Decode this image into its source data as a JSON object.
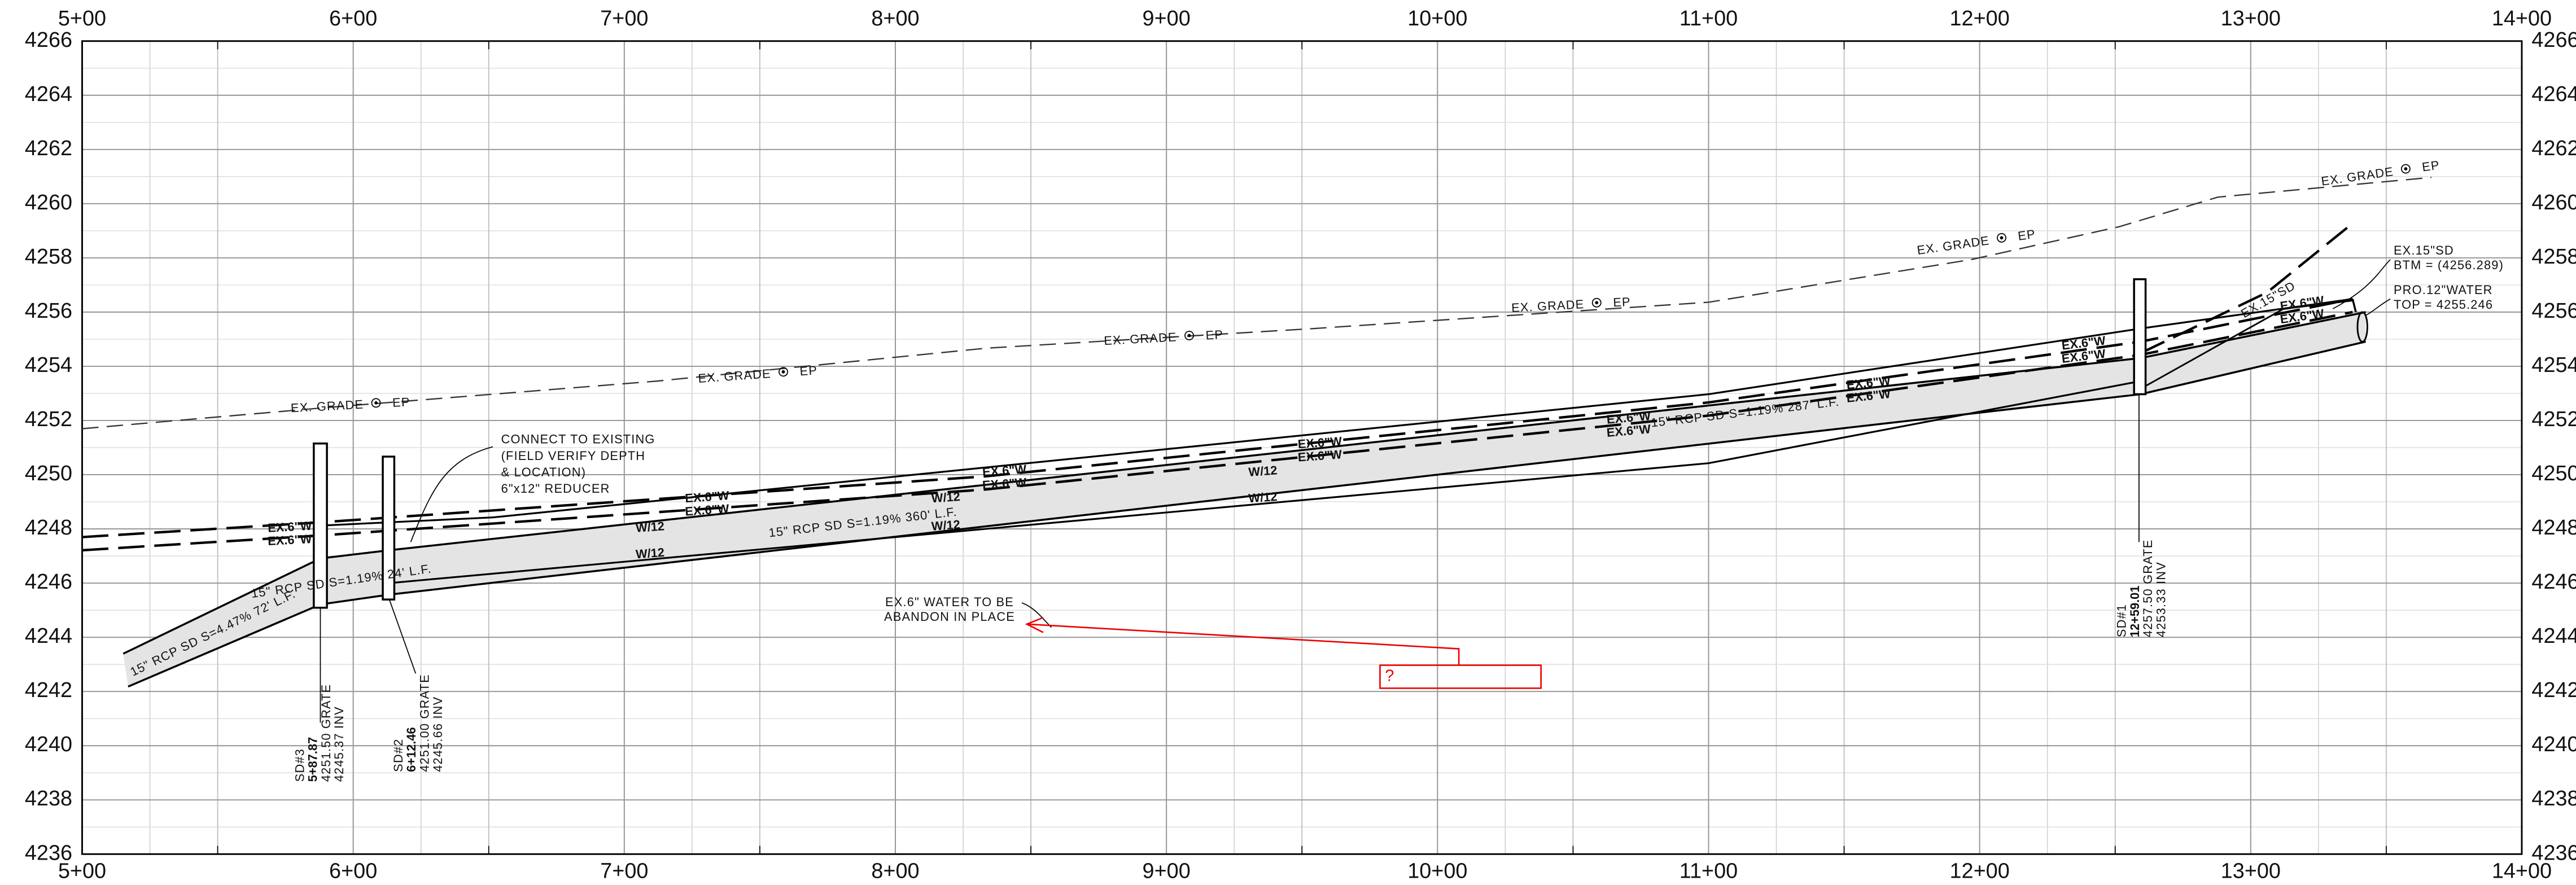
{
  "stations": [
    "5+00",
    "6+00",
    "7+00",
    "8+00",
    "9+00",
    "10+00",
    "11+00",
    "12+00",
    "13+00",
    "14+00"
  ],
  "elevations": [
    "4266",
    "4264",
    "4262",
    "4260",
    "4258",
    "4256",
    "4254",
    "4252",
    "4250",
    "4248",
    "4246",
    "4244",
    "4242",
    "4240",
    "4238",
    "4236"
  ],
  "grade_label": "EX. GRADE",
  "grade_ep": "EP",
  "water_label": "EX.6\"W",
  "w12": "W/12",
  "pipes": [
    "15\" RCP SD S=4.47% 72' L.F.",
    "15\" RCP SD S=1.19% 24' L.F.",
    "15\" RCP SD S=1.19% 360' L.F.",
    "15\" RCP SD S=1.19% 287' L.F."
  ],
  "callouts": {
    "connect": [
      "CONNECT TO EXISTING",
      "(FIELD VERIFY DEPTH",
      "& LOCATION)",
      "6\"x12\" REDUCER"
    ],
    "abandon": [
      "EX.6\" WATER TO BE",
      "ABANDON IN PLACE"
    ],
    "question": "?",
    "ex15": [
      "EX.15\"SD",
      "BTM = (4256.289)"
    ],
    "pro12": [
      "PRO.12\"WATER",
      "TOP = 4255.246"
    ],
    "ex15_pipe": "EX.15\"SD"
  },
  "structures": [
    {
      "name": "SD#3",
      "station": "5+87.87",
      "grate": "4251.50 GRATE",
      "inv": "4245.37 INV"
    },
    {
      "name": "SD#2",
      "station": "6+12.46",
      "grate": "4251.00 GRATE",
      "inv": "4245.66 INV"
    },
    {
      "name": "SD#1",
      "station": "12+59.01",
      "grate": "4257.50 GRATE",
      "inv": "4253.33 INV"
    }
  ]
}
